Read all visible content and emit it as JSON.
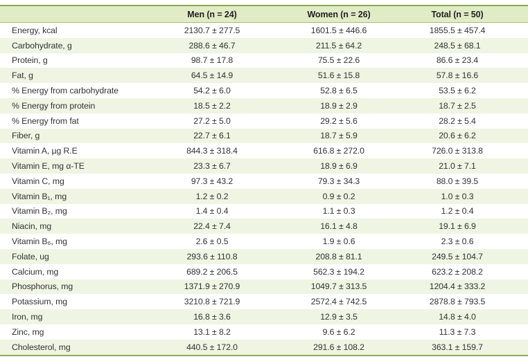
{
  "table": {
    "columns": [
      "",
      "Men (n = 24)",
      "Women (n = 26)",
      "Total (n = 50)"
    ],
    "rows": [
      {
        "label": "Energy, kcal",
        "men": "2130.7 ± 277.5",
        "women": "1601.5 ± 446.6",
        "total": "1855.5 ± 457.4"
      },
      {
        "label": "Carbohydrate, g",
        "men": "288.6 ± 46.7",
        "women": "211.5 ± 64.2",
        "total": "248.5 ± 68.1"
      },
      {
        "label": "Protein, g",
        "men": "98.7 ± 17.8",
        "women": "75.5 ± 22.6",
        "total": "86.6 ± 23.4"
      },
      {
        "label": "Fat, g",
        "men": "64.5 ± 14.9",
        "women": "51.6 ± 15.8",
        "total": "57.8 ± 16.6"
      },
      {
        "label": "% Energy from carbohydrate",
        "men": "54.2 ± 6.0",
        "women": "52.8 ± 6.5",
        "total": "53.5 ± 6.2"
      },
      {
        "label": "% Energy from protein",
        "men": "18.5 ± 2.2",
        "women": "18.9 ± 2.9",
        "total": "18.7 ± 2.5"
      },
      {
        "label": "% Energy from fat",
        "men": "27.2 ± 5.0",
        "women": "29.2 ± 5.6",
        "total": "28.2 ± 5.4"
      },
      {
        "label": "Fiber, g",
        "men": "22.7 ± 6.1",
        "women": "18.7 ± 5.9",
        "total": "20.6 ± 6.2"
      },
      {
        "label": "Vitamin A, µg R.E",
        "men": "844.3 ± 318.4",
        "women": "616.8 ± 272.0",
        "total": "726.0 ± 313.8"
      },
      {
        "label": "Vitamin E, mg α-TE",
        "men": "23.3 ± 6.7",
        "women": "18.9 ± 6.9",
        "total": "21.0 ± 7.1"
      },
      {
        "label": "Vitamin C, mg",
        "men": "97.3 ± 43.2",
        "women": "79.3 ± 34.3",
        "total": "88.0 ± 39.5"
      },
      {
        "label": "Vitamin B₁, mg",
        "men": "1.2 ± 0.2",
        "women": "0.9 ± 0.2",
        "total": "1.0 ± 0.3"
      },
      {
        "label": "Vitamin B₂, mg",
        "men": "1.4 ± 0.4",
        "women": "1.1 ± 0.3",
        "total": "1.2 ± 0.4"
      },
      {
        "label": "Niacin, mg",
        "men": "22.4 ± 7.4",
        "women": "16.1 ± 4.8",
        "total": "19.1 ± 6.9"
      },
      {
        "label": "Vitamin B₆, mg",
        "men": "2.6 ± 0.5",
        "women": "1.9 ± 0.6",
        "total": "2.3 ± 0.6"
      },
      {
        "label": "Folate, ug",
        "men": "293.6 ± 110.8",
        "women": "208.8 ± 81.1",
        "total": "249.5 ± 104.7"
      },
      {
        "label": "Calcium, mg",
        "men": "689.2 ± 206.5",
        "women": "562.3 ± 194.2",
        "total": "623.2 ± 208.2"
      },
      {
        "label": "Phosphorus, mg",
        "men": "1371.9 ± 270.9",
        "women": "1049.7 ± 313.5",
        "total": "1204.4 ± 333.2"
      },
      {
        "label": "Potassium, mg",
        "men": "3210.8 ± 721.9",
        "women": "2572.4 ± 742.5",
        "total": "2878.8 ± 793.5"
      },
      {
        "label": "Iron, mg",
        "men": "16.8 ± 3.6",
        "women": "12.9 ± 3.5",
        "total": "14.8 ± 4.0"
      },
      {
        "label": "Zinc, mg",
        "men": "13.1 ± 8.2",
        "women": "9.6 ± 6.2",
        "total": "11.3 ± 7.3"
      },
      {
        "label": "Cholesterol, mg",
        "men": "440.5 ± 172.0",
        "women": "291.6 ± 108.2",
        "total": "363.1 ± 159.7"
      }
    ]
  },
  "colors": {
    "header_background": "#dfecc6",
    "stripe_background": "#f0f4e2",
    "rule_green": "#8ca64e",
    "text": "#333333"
  }
}
